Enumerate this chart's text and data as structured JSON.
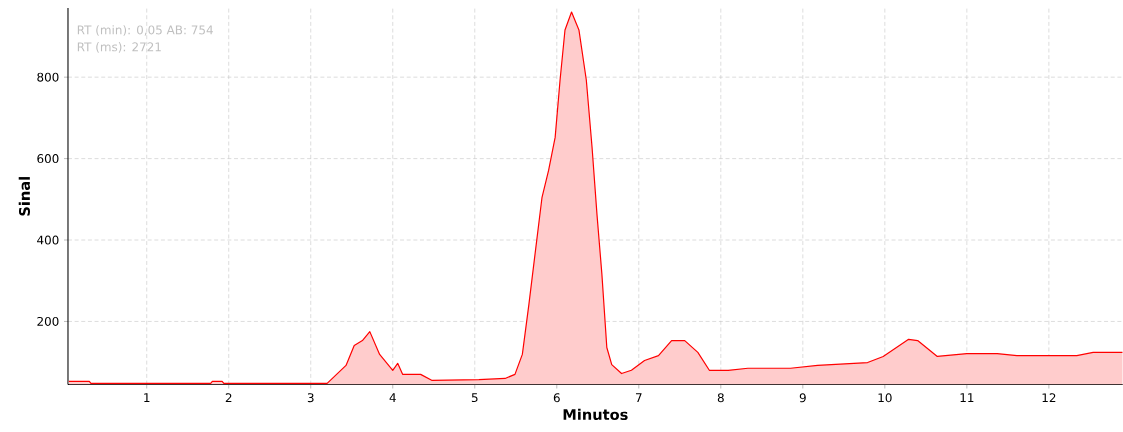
{
  "chart_data": {
    "type": "area",
    "xlabel": "Minutos",
    "ylabel": "Sinal",
    "annotations": [
      "RT (min): 0,05 AB: 754",
      "RT (ms): 2721"
    ],
    "xlim": [
      0.04,
      12.9
    ],
    "ylim": [
      45,
      970
    ],
    "xticks": [
      1,
      2,
      3,
      4,
      5,
      6,
      7,
      8,
      9,
      10,
      11,
      12
    ],
    "yticks": [
      200,
      400,
      600,
      800
    ],
    "grid": true,
    "series": [
      {
        "color": "#ff0000",
        "x": [
          0.05,
          0.3,
          0.32,
          1.78,
          1.8,
          1.92,
          1.94,
          3.2,
          3.43,
          3.53,
          3.63,
          3.72,
          3.84,
          4.0,
          4.06,
          4.12,
          4.34,
          4.48,
          5.05,
          5.37,
          5.49,
          5.58,
          5.66,
          5.74,
          5.82,
          5.9,
          5.98,
          6.04,
          6.1,
          6.18,
          6.27,
          6.36,
          6.43,
          6.49,
          6.55,
          6.61,
          6.67,
          6.79,
          6.91,
          7.07,
          7.24,
          7.4,
          7.56,
          7.72,
          7.86,
          8.09,
          8.33,
          8.85,
          9.18,
          9.79,
          9.98,
          10.29,
          10.4,
          10.64,
          11.0,
          11.37,
          11.61,
          12.34,
          12.54,
          12.9
        ],
        "values": [
          53,
          53,
          48,
          48,
          53,
          53,
          48,
          48,
          92,
          141,
          153,
          175,
          119,
          80,
          97,
          70,
          70,
          55,
          57,
          60,
          70,
          119,
          242,
          374,
          505,
          571,
          652,
          793,
          916,
          960,
          916,
          793,
          628,
          463,
          316,
          136,
          94,
          72,
          80,
          104,
          116,
          153,
          153,
          124,
          80,
          80,
          85,
          85,
          92,
          99,
          114,
          156,
          153,
          114,
          121,
          121,
          116,
          116,
          124,
          124
        ]
      }
    ]
  }
}
